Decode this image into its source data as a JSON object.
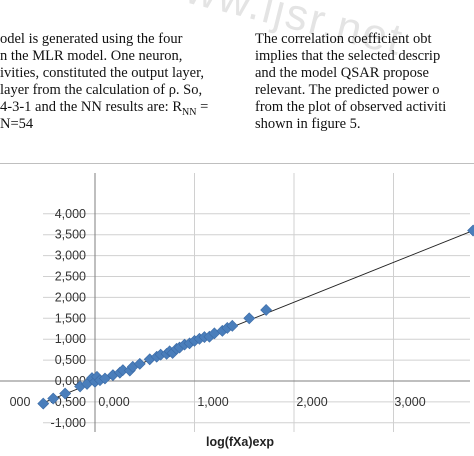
{
  "watermark": "www.ijsr.net",
  "text_left": [
    "odel is generated using the four",
    "n the MLR model. One neuron,",
    "ivities, constituted the output layer,",
    " layer from the calculation of ρ. So,",
    "4-3-1 and the NN results are: R",
    " N=54"
  ],
  "text_left_sub": "NN",
  "text_left_tail": " =",
  "text_right": [
    "The correlation coefficient obt",
    "implies that the selected descrip",
    "and the model QSAR propose",
    "relevant. The predicted power o",
    "from the plot of observed activiti",
    "shown in figure 5."
  ],
  "chart_data": {
    "type": "scatter",
    "xlabel": "log(fXa)exp",
    "ylabel": "",
    "title": "",
    "xlim": [
      -1.05,
      3.9
    ],
    "ylim": [
      -1.0,
      4.0
    ],
    "x_ticks": [
      "000",
      "0,000",
      "1,000",
      "2,000",
      "3,000"
    ],
    "x_tick_values": [
      -1.0,
      0.0,
      1.0,
      2.0,
      3.0
    ],
    "y_ticks": [
      "-1,000",
      "-0,500",
      "0,000",
      "0,500",
      "1,000",
      "1,500",
      "2,000",
      "2,500",
      "3,000",
      "3,500",
      "4,000"
    ],
    "y_tick_values": [
      -1.0,
      -0.5,
      0.0,
      0.5,
      1.0,
      1.5,
      2.0,
      2.5,
      3.0,
      3.5,
      4.0
    ],
    "grid": true,
    "marker_color": "#4a7ebb",
    "fit_line": {
      "x": [
        -0.5,
        3.8
      ],
      "y": [
        -0.5,
        3.6
      ]
    },
    "points": [
      {
        "x": -0.52,
        "y": -0.54
      },
      {
        "x": -0.42,
        "y": -0.42
      },
      {
        "x": -0.3,
        "y": -0.3
      },
      {
        "x": -0.15,
        "y": -0.13
      },
      {
        "x": -0.08,
        "y": -0.07
      },
      {
        "x": -0.03,
        "y": 0.07
      },
      {
        "x": 0.0,
        "y": -0.02
      },
      {
        "x": 0.02,
        "y": 0.1
      },
      {
        "x": 0.05,
        "y": 0.02
      },
      {
        "x": 0.1,
        "y": 0.06
      },
      {
        "x": 0.18,
        "y": 0.14
      },
      {
        "x": 0.25,
        "y": 0.2
      },
      {
        "x": 0.28,
        "y": 0.26
      },
      {
        "x": 0.35,
        "y": 0.25
      },
      {
        "x": 0.38,
        "y": 0.34
      },
      {
        "x": 0.45,
        "y": 0.41
      },
      {
        "x": 0.55,
        "y": 0.52
      },
      {
        "x": 0.62,
        "y": 0.58
      },
      {
        "x": 0.66,
        "y": 0.63
      },
      {
        "x": 0.72,
        "y": 0.65
      },
      {
        "x": 0.75,
        "y": 0.71
      },
      {
        "x": 0.78,
        "y": 0.67
      },
      {
        "x": 0.82,
        "y": 0.77
      },
      {
        "x": 0.85,
        "y": 0.8
      },
      {
        "x": 0.9,
        "y": 0.87
      },
      {
        "x": 0.95,
        "y": 0.9
      },
      {
        "x": 1.0,
        "y": 0.96
      },
      {
        "x": 1.05,
        "y": 1.01
      },
      {
        "x": 1.1,
        "y": 1.05
      },
      {
        "x": 1.15,
        "y": 1.06
      },
      {
        "x": 1.2,
        "y": 1.14
      },
      {
        "x": 1.28,
        "y": 1.2
      },
      {
        "x": 1.33,
        "y": 1.27
      },
      {
        "x": 1.38,
        "y": 1.32
      },
      {
        "x": 1.55,
        "y": 1.5
      },
      {
        "x": 1.72,
        "y": 1.7
      },
      {
        "x": 3.8,
        "y": 3.6
      }
    ]
  }
}
